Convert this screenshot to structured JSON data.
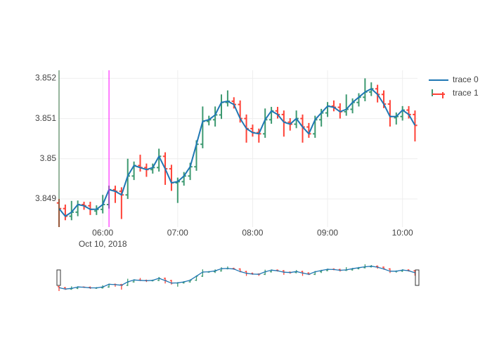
{
  "chart_data": {
    "type": "ohlc",
    "x": [
      "2018-10-10 05:25",
      "2018-10-10 05:30",
      "2018-10-10 05:35",
      "2018-10-10 05:40",
      "2018-10-10 05:45",
      "2018-10-10 05:50",
      "2018-10-10 05:55",
      "2018-10-10 06:00",
      "2018-10-10 06:05",
      "2018-10-10 06:10",
      "2018-10-10 06:15",
      "2018-10-10 06:20",
      "2018-10-10 06:25",
      "2018-10-10 06:30",
      "2018-10-10 06:35",
      "2018-10-10 06:40",
      "2018-10-10 06:45",
      "2018-10-10 06:50",
      "2018-10-10 06:55",
      "2018-10-10 07:00",
      "2018-10-10 07:05",
      "2018-10-10 07:10",
      "2018-10-10 07:15",
      "2018-10-10 07:20",
      "2018-10-10 07:25",
      "2018-10-10 07:30",
      "2018-10-10 07:35",
      "2018-10-10 07:40",
      "2018-10-10 07:45",
      "2018-10-10 07:50",
      "2018-10-10 07:55",
      "2018-10-10 08:00",
      "2018-10-10 08:05",
      "2018-10-10 08:10",
      "2018-10-10 08:15",
      "2018-10-10 08:20",
      "2018-10-10 08:25",
      "2018-10-10 08:30",
      "2018-10-10 08:35",
      "2018-10-10 08:40",
      "2018-10-10 08:45",
      "2018-10-10 08:50",
      "2018-10-10 08:55",
      "2018-10-10 09:00",
      "2018-10-10 09:05",
      "2018-10-10 09:10",
      "2018-10-10 09:15",
      "2018-10-10 09:20",
      "2018-10-10 09:25",
      "2018-10-10 09:30",
      "2018-10-10 09:35",
      "2018-10-10 09:40",
      "2018-10-10 09:45",
      "2018-10-10 09:50",
      "2018-10-10 09:55",
      "2018-10-10 10:00",
      "2018-10-10 10:05",
      "2018-10-10 10:10"
    ],
    "series": [
      {
        "name": "trace 0",
        "type": "line",
        "color": "#1f77b4",
        "values": [
          3.84876,
          3.84857,
          3.84867,
          3.84886,
          3.84883,
          3.84874,
          3.84874,
          3.84886,
          3.84923,
          3.84919,
          3.8491,
          3.84957,
          3.84983,
          3.84978,
          3.84973,
          3.84978,
          3.85006,
          3.84975,
          3.8494,
          3.84943,
          3.84957,
          3.8498,
          3.85036,
          3.85093,
          3.85097,
          3.85109,
          3.8514,
          3.85143,
          3.85135,
          3.851,
          3.85075,
          3.85065,
          3.85062,
          3.85097,
          3.85119,
          3.8511,
          3.85091,
          3.85086,
          3.851,
          3.85079,
          3.85062,
          3.85097,
          3.85114,
          3.85131,
          3.85128,
          3.85117,
          3.85123,
          3.8514,
          3.85153,
          3.85166,
          3.85174,
          3.8516,
          3.85136,
          3.85105,
          3.85105,
          3.85121,
          3.8511,
          3.85083
        ]
      },
      {
        "name": "trace 1",
        "type": "ohlc",
        "increasing_color": "#3d9970",
        "decreasing_color": "#ff4136",
        "open": [
          3.8489,
          3.84876,
          3.84857,
          3.84867,
          3.84886,
          3.84883,
          3.8487,
          3.84874,
          3.84886,
          3.84923,
          3.84919,
          3.8491,
          3.84957,
          3.84983,
          3.84978,
          3.84973,
          3.84978,
          3.85006,
          3.84975,
          3.8494,
          3.84943,
          3.84957,
          3.8498,
          3.85036,
          3.85093,
          3.85097,
          3.85109,
          3.8514,
          3.85143,
          3.85135,
          3.851,
          3.85075,
          3.85065,
          3.85062,
          3.85097,
          3.85119,
          3.8511,
          3.85091,
          3.85086,
          3.851,
          3.85079,
          3.85062,
          3.85097,
          3.85114,
          3.85131,
          3.85128,
          3.85117,
          3.85123,
          3.8514,
          3.85153,
          3.85166,
          3.85174,
          3.8516,
          3.85136,
          3.85102,
          3.85105,
          3.85121,
          3.8511
        ],
        "high": [
          3.849,
          3.84886,
          3.84895,
          3.84896,
          3.84893,
          3.84893,
          3.84884,
          3.8491,
          3.84933,
          3.84933,
          3.84929,
          3.85,
          3.84993,
          3.8501,
          3.84988,
          3.84988,
          3.85025,
          3.85016,
          3.84985,
          3.84953,
          3.84967,
          3.8499,
          3.85046,
          3.8513,
          3.85107,
          3.8513,
          3.8516,
          3.8517,
          3.85153,
          3.85145,
          3.8511,
          3.85085,
          3.85075,
          3.85125,
          3.85129,
          3.85129,
          3.8512,
          3.85101,
          3.8512,
          3.8511,
          3.85089,
          3.85107,
          3.85124,
          3.85141,
          3.85145,
          3.85138,
          3.8516,
          3.8515,
          3.85163,
          3.852,
          3.8519,
          3.85184,
          3.8517,
          3.85146,
          3.85115,
          3.85131,
          3.85131,
          3.8512
        ],
        "low": [
          3.8483,
          3.84847,
          3.84847,
          3.84857,
          3.84873,
          3.8486,
          3.8486,
          3.84864,
          3.84876,
          3.8489,
          3.8485,
          3.849,
          3.84947,
          3.84968,
          3.84955,
          3.84963,
          3.84968,
          3.84935,
          3.8492,
          3.8489,
          3.84933,
          3.84947,
          3.8497,
          3.85026,
          3.85083,
          3.8508,
          3.85099,
          3.8513,
          3.85125,
          3.8509,
          3.8504,
          3.85055,
          3.8504,
          3.85052,
          3.85087,
          3.851,
          3.85055,
          3.8507,
          3.85076,
          3.8504,
          3.85052,
          3.85052,
          3.8508,
          3.85104,
          3.85118,
          3.851,
          3.85107,
          3.85113,
          3.8513,
          3.85143,
          3.85156,
          3.8514,
          3.85126,
          3.8508,
          3.85085,
          3.85095,
          3.851,
          3.85043
        ],
        "close": [
          3.84876,
          3.84857,
          3.84867,
          3.84886,
          3.84883,
          3.84874,
          3.84874,
          3.84886,
          3.84923,
          3.84919,
          3.8491,
          3.84957,
          3.84983,
          3.84978,
          3.84973,
          3.84978,
          3.85006,
          3.84975,
          3.8494,
          3.84943,
          3.84957,
          3.8498,
          3.85036,
          3.85093,
          3.85097,
          3.85109,
          3.8514,
          3.85143,
          3.85135,
          3.851,
          3.85075,
          3.85065,
          3.85062,
          3.85097,
          3.85119,
          3.8511,
          3.85091,
          3.85086,
          3.851,
          3.85079,
          3.85062,
          3.85097,
          3.85114,
          3.85131,
          3.85128,
          3.85117,
          3.85123,
          3.8514,
          3.85153,
          3.85166,
          3.85174,
          3.8516,
          3.85136,
          3.85105,
          3.85105,
          3.85121,
          3.8511,
          3.85083
        ]
      }
    ],
    "xlim": [
      "2018-10-10 05:25",
      "2018-10-10 10:12"
    ],
    "xticks": [
      {
        "value": "2018-10-10 06:00",
        "label": "06:00"
      },
      {
        "value": "2018-10-10 07:00",
        "label": "07:00"
      },
      {
        "value": "2018-10-10 08:00",
        "label": "08:00"
      },
      {
        "value": "2018-10-10 09:00",
        "label": "09:00"
      },
      {
        "value": "2018-10-10 10:00",
        "label": "10:00"
      }
    ],
    "x_date_label": "Oct 10, 2018",
    "ylim": [
      3.8483,
      3.8522
    ],
    "yticks": [
      3.849,
      3.85,
      3.851,
      3.852
    ],
    "grid": true,
    "shapes": [
      {
        "x": "2018-10-10 05:25",
        "color": "#2e6b3a"
      },
      {
        "x": "2018-10-10 06:05",
        "color": "#ff00ff"
      }
    ],
    "rangeslider": true
  }
}
